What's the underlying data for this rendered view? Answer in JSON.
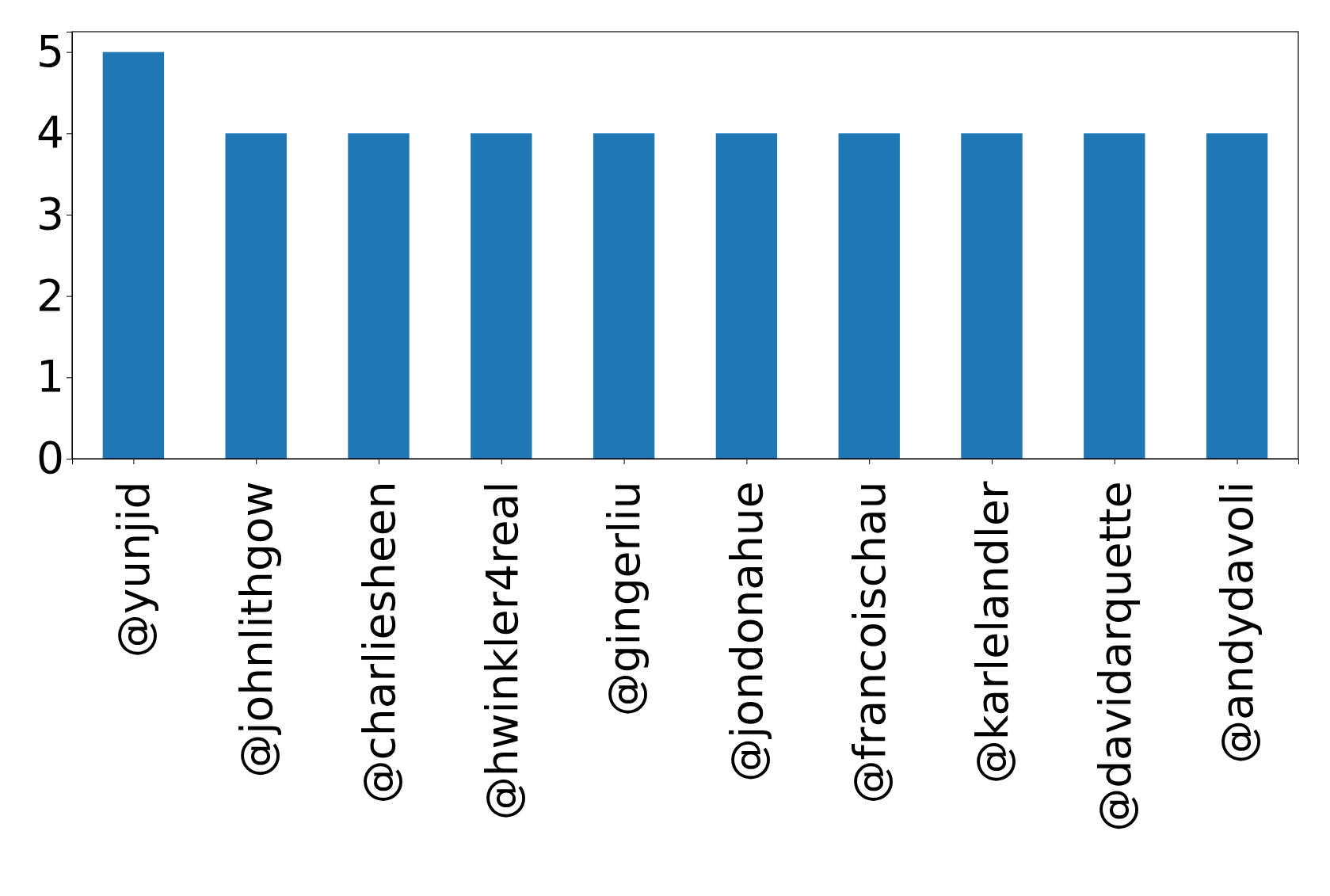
{
  "chart_data": {
    "type": "bar",
    "categories": [
      "@yunjid",
      "@johnlithgow",
      "@charliesheen",
      "@hwinkler4real",
      "@gingerliu",
      "@jondonahue",
      "@francoischau",
      "@karlelandler",
      "@davidarquette",
      "@andydavoli"
    ],
    "values": [
      5,
      4,
      4,
      4,
      4,
      4,
      4,
      4,
      4,
      4
    ],
    "color": "#1f77b4",
    "ylim": [
      0,
      5.25
    ],
    "yticks": [
      0,
      1,
      2,
      3,
      4,
      5
    ],
    "grid": false
  }
}
